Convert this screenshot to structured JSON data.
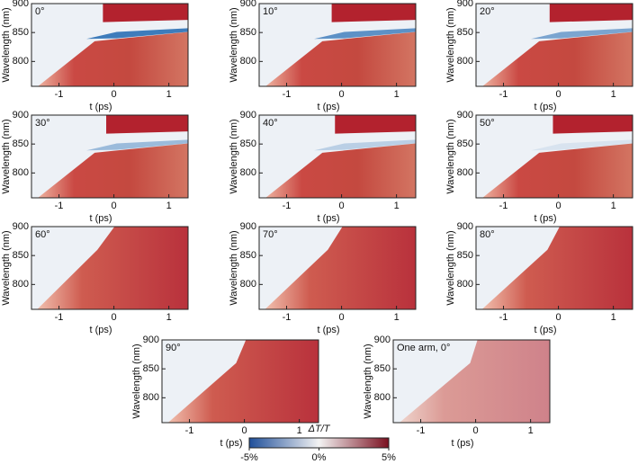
{
  "chart_data": [
    {
      "type": "heatmap",
      "label": "0°",
      "xlabel": "t (ps)",
      "ylabel": "Wavelength (nm)",
      "xlim": [
        -1.5,
        1.35
      ],
      "ylim": [
        757,
        900
      ],
      "xticks": [
        -1,
        0,
        1
      ],
      "yticks": [
        800,
        850,
        900
      ]
    },
    {
      "type": "heatmap",
      "label": "10°",
      "xlabel": "t (ps)",
      "ylabel": "Wavelength (nm)",
      "xlim": [
        -1.5,
        1.35
      ],
      "ylim": [
        757,
        900
      ],
      "xticks": [
        -1,
        0,
        1
      ],
      "yticks": [
        800,
        850,
        900
      ]
    },
    {
      "type": "heatmap",
      "label": "20°",
      "xlabel": "t (ps)",
      "ylabel": "Wavelength (nm)",
      "xlim": [
        -1.5,
        1.35
      ],
      "ylim": [
        757,
        900
      ],
      "xticks": [
        -1,
        0,
        1
      ],
      "yticks": [
        800,
        850,
        900
      ]
    },
    {
      "type": "heatmap",
      "label": "30°",
      "xlabel": "t (ps)",
      "ylabel": "Wavelength (nm)",
      "xlim": [
        -1.5,
        1.35
      ],
      "ylim": [
        757,
        900
      ],
      "xticks": [
        -1,
        0,
        1
      ],
      "yticks": [
        800,
        850,
        900
      ]
    },
    {
      "type": "heatmap",
      "label": "40°",
      "xlabel": "t (ps)",
      "ylabel": "Wavelength (nm)",
      "xlim": [
        -1.5,
        1.35
      ],
      "ylim": [
        757,
        900
      ],
      "xticks": [
        -1,
        0,
        1
      ],
      "yticks": [
        800,
        850,
        900
      ]
    },
    {
      "type": "heatmap",
      "label": "50°",
      "xlabel": "t (ps)",
      "ylabel": "Wavelength (nm)",
      "xlim": [
        -1.5,
        1.35
      ],
      "ylim": [
        757,
        900
      ],
      "xticks": [
        -1,
        0,
        1
      ],
      "yticks": [
        800,
        850,
        900
      ]
    },
    {
      "type": "heatmap",
      "label": "60°",
      "xlabel": "t (ps)",
      "ylabel": "Wavelength (nm)",
      "xlim": [
        -1.5,
        1.35
      ],
      "ylim": [
        757,
        900
      ],
      "xticks": [
        -1,
        0,
        1
      ],
      "yticks": [
        800,
        850,
        900
      ]
    },
    {
      "type": "heatmap",
      "label": "70°",
      "xlabel": "t (ps)",
      "ylabel": "Wavelength (nm)",
      "xlim": [
        -1.5,
        1.35
      ],
      "ylim": [
        757,
        900
      ],
      "xticks": [
        -1,
        0,
        1
      ],
      "yticks": [
        800,
        850,
        900
      ]
    },
    {
      "type": "heatmap",
      "label": "80°",
      "xlabel": "t (ps)",
      "ylabel": "Wavelength (nm)",
      "xlim": [
        -1.5,
        1.35
      ],
      "ylim": [
        757,
        900
      ],
      "xticks": [
        -1,
        0,
        1
      ],
      "yticks": [
        800,
        850,
        900
      ]
    },
    {
      "type": "heatmap",
      "label": "90°",
      "xlabel": "t (ps)",
      "ylabel": "Wavelength (nm)",
      "xlim": [
        -1.5,
        1.35
      ],
      "ylim": [
        757,
        900
      ],
      "xticks": [
        -1,
        0,
        1
      ],
      "yticks": [
        800,
        850,
        900
      ]
    },
    {
      "type": "heatmap",
      "label": "One arm, 0°",
      "xlabel": "t (ps)",
      "ylabel": "Wavelength (nm)",
      "xlim": [
        -1.5,
        1.35
      ],
      "ylim": [
        757,
        900
      ],
      "xticks": [
        -1,
        0,
        1
      ],
      "yticks": [
        800,
        850,
        900
      ]
    },
    {
      "type": "colorbar",
      "title": "ΔT/T",
      "colors": [
        "#1f4f9a",
        "#f3f3f3",
        "#7a0f1f"
      ],
      "xlim": [
        -5,
        5
      ],
      "xticks": [
        {
          "value": -5,
          "label": "-5%"
        },
        {
          "value": 0,
          "label": "0%"
        },
        {
          "value": 5,
          "label": "5%"
        }
      ]
    }
  ]
}
